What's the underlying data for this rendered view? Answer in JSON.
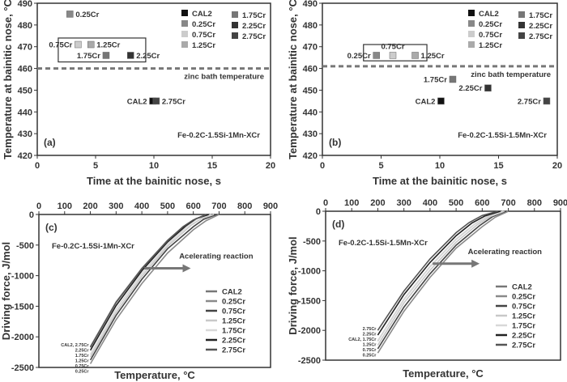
{
  "chart_data": [
    {
      "id": "a",
      "type": "scatter",
      "panel_label": "(a)",
      "xlabel": "Time at the bainitic nose, s",
      "ylabel": "Temperature at bainitic nose, °C",
      "xlim": [
        0,
        20
      ],
      "ylim": [
        420,
        490
      ],
      "xticks": [
        "0",
        "5",
        "10",
        "15",
        "20"
      ],
      "yticks": [
        "420",
        "430",
        "440",
        "450",
        "460",
        "470",
        "480",
        "490"
      ],
      "composition": "Fe-0.2C-1.5Si-1Mn-XCr",
      "reference_line": {
        "y": 460,
        "label": "zinc bath temperature",
        "style": "dashed"
      },
      "legend": {
        "placement": "top-right",
        "entries": [
          "CAL2",
          "0.25Cr",
          "0.75Cr",
          "1.25Cr",
          "1.75Cr",
          "2.25Cr",
          "2.75Cr"
        ]
      },
      "points": [
        {
          "name": "CAL2",
          "x": 9.9,
          "y": 445,
          "color": "#111111",
          "label": "CAL2",
          "label_side": "left"
        },
        {
          "name": "0.25Cr",
          "x": 2.8,
          "y": 485,
          "color": "#888888",
          "label": "0.25Cr",
          "label_side": "right"
        },
        {
          "name": "0.75Cr",
          "x": 3.5,
          "y": 471,
          "color": "#cccccc",
          "label": "0.75Cr",
          "label_side": "left"
        },
        {
          "name": "1.25Cr",
          "x": 4.6,
          "y": 471,
          "color": "#aaaaaa",
          "label": "1.25Cr",
          "label_side": "right"
        },
        {
          "name": "1.75Cr",
          "x": 5.9,
          "y": 466,
          "color": "#777777",
          "label": "1.75Cr",
          "label_side": "left"
        },
        {
          "name": "2.25Cr",
          "x": 8.0,
          "y": 466,
          "color": "#333333",
          "label": "2.25Cr",
          "label_side": "right"
        },
        {
          "name": "2.75Cr",
          "x": 10.2,
          "y": 445,
          "color": "#444444",
          "label": "2.75Cr",
          "label_side": "right"
        }
      ],
      "boxed_group": [
        "0.75Cr",
        "1.25Cr",
        "1.75Cr",
        "2.25Cr"
      ]
    },
    {
      "id": "b",
      "type": "scatter",
      "panel_label": "(b)",
      "xlabel": "Time at the bainitic nose, s",
      "ylabel": "Temperature at bainitic nose, °C",
      "xlim": [
        0,
        20
      ],
      "ylim": [
        420,
        490
      ],
      "xticks": [
        "0",
        "5",
        "10",
        "15",
        "20"
      ],
      "yticks": [
        "420",
        "430",
        "440",
        "450",
        "460",
        "470",
        "480",
        "490"
      ],
      "composition": "Fe-0.2C-1.5Si-1.5Mn-XCr",
      "reference_line": {
        "y": 461,
        "label": "zinc bath temperature",
        "style": "dashed"
      },
      "legend": {
        "placement": "top-right",
        "entries": [
          "CAL2",
          "0.25Cr",
          "0.75Cr",
          "1.25Cr",
          "1.75Cr",
          "2.25Cr",
          "2.75Cr"
        ]
      },
      "points": [
        {
          "name": "CAL2",
          "x": 10.1,
          "y": 445,
          "color": "#111111",
          "label": "CAL2",
          "label_side": "left"
        },
        {
          "name": "0.25Cr",
          "x": 4.6,
          "y": 466,
          "color": "#888888",
          "label": "0.25Cr",
          "label_side": "left"
        },
        {
          "name": "0.75Cr",
          "x": 6.0,
          "y": 466,
          "color": "#cccccc",
          "label": "0.75Cr",
          "label_side": "top"
        },
        {
          "name": "1.25Cr",
          "x": 7.9,
          "y": 466,
          "color": "#aaaaaa",
          "label": "1.25Cr",
          "label_side": "right"
        },
        {
          "name": "1.75Cr",
          "x": 11.1,
          "y": 455,
          "color": "#777777",
          "label": "1.75Cr",
          "label_side": "left"
        },
        {
          "name": "2.25Cr",
          "x": 14.1,
          "y": 451,
          "color": "#333333",
          "label": "2.25Cr",
          "label_side": "left"
        },
        {
          "name": "2.75Cr",
          "x": 19.1,
          "y": 445,
          "color": "#444444",
          "label": "2.75Cr",
          "label_side": "left"
        }
      ],
      "boxed_group": [
        "0.25Cr",
        "0.75Cr",
        "1.25Cr"
      ]
    },
    {
      "id": "c",
      "type": "line",
      "panel_label": "(c)",
      "xlabel": "Temperature, °C",
      "ylabel": "Driving force, J/mol",
      "xlim": [
        0,
        900
      ],
      "ylim": [
        -2500,
        0
      ],
      "xticks": [
        "0",
        "100",
        "200",
        "300",
        "400",
        "500",
        "600",
        "700",
        "800",
        "900"
      ],
      "yticks": [
        "0",
        "-500",
        "-1000",
        "-1500",
        "-2000",
        "-2500"
      ],
      "x_axis_position": "top",
      "composition": "Fe-0.2C-1.5Si-1Mn-XCr",
      "annotation": "Acelerating reaction",
      "legend": {
        "placement": "right"
      },
      "end_labels": [
        "CAL2, 2.75Cr",
        "2.25Cr",
        "1.75Cr",
        "1.25Cr",
        "0.75Cr",
        "0.25Cr"
      ],
      "series": [
        {
          "name": "CAL2",
          "color": "#777777",
          "x": [
            200,
            300,
            400,
            500,
            560,
            600,
            650
          ],
          "y": [
            -2160,
            -1430,
            -880,
            -420,
            -200,
            -90,
            0
          ]
        },
        {
          "name": "0.25Cr",
          "color": "#8a8a8a",
          "x": [
            200,
            300,
            400,
            500,
            600,
            650,
            700
          ],
          "y": [
            -2440,
            -1720,
            -1130,
            -630,
            -250,
            -100,
            0
          ]
        },
        {
          "name": "0.75Cr",
          "color": "#444444",
          "x": [
            200,
            300,
            400,
            500,
            600,
            640,
            690
          ],
          "y": [
            -2380,
            -1650,
            -1060,
            -560,
            -200,
            -80,
            0
          ]
        },
        {
          "name": "1.25Cr",
          "color": "#c8c8c8",
          "x": [
            200,
            300,
            400,
            500,
            590,
            630,
            680
          ],
          "y": [
            -2330,
            -1600,
            -1010,
            -520,
            -180,
            -70,
            0
          ]
        },
        {
          "name": "1.75Cr",
          "color": "#d8d8d8",
          "x": [
            200,
            300,
            400,
            500,
            580,
            620,
            670
          ],
          "y": [
            -2290,
            -1550,
            -970,
            -490,
            -180,
            -60,
            0
          ]
        },
        {
          "name": "2.25Cr",
          "color": "#222222",
          "x": [
            200,
            300,
            400,
            500,
            570,
            610,
            660
          ],
          "y": [
            -2220,
            -1490,
            -920,
            -450,
            -190,
            -70,
            0
          ]
        },
        {
          "name": "2.75Cr",
          "color": "#555555",
          "x": [
            200,
            300,
            400,
            500,
            560,
            600,
            650
          ],
          "y": [
            -2170,
            -1440,
            -890,
            -430,
            -200,
            -90,
            0
          ]
        }
      ]
    },
    {
      "id": "d",
      "type": "line",
      "panel_label": "(d)",
      "xlabel": "Temperature, °C",
      "ylabel": "Driving force, J/mol",
      "xlim": [
        0,
        900
      ],
      "ylim": [
        -2500,
        0
      ],
      "xticks": [
        "0",
        "100",
        "200",
        "300",
        "400",
        "500",
        "600",
        "700",
        "800",
        "900"
      ],
      "yticks": [
        "0",
        "-500",
        "-1000",
        "-1500",
        "-2000",
        "-2500"
      ],
      "x_axis_position": "top",
      "composition": "Fe-0.2C-1.5Si-1.5Mn-XCr",
      "annotation": "Acelerating reaction",
      "legend": {
        "placement": "right"
      },
      "end_labels": [
        "2.75Cr",
        "2.25Cr",
        "CAL2, 1.75Cr",
        "1.25Cr",
        "0.75Cr",
        "0.25Cr"
      ],
      "series": [
        {
          "name": "CAL2",
          "color": "#777777",
          "x": [
            200,
            300,
            400,
            500,
            570,
            620,
            680
          ],
          "y": [
            -2180,
            -1480,
            -930,
            -470,
            -220,
            -90,
            0
          ]
        },
        {
          "name": "0.25Cr",
          "color": "#8a8a8a",
          "x": [
            200,
            300,
            400,
            500,
            600,
            650,
            700
          ],
          "y": [
            -2380,
            -1680,
            -1110,
            -620,
            -260,
            -100,
            0
          ]
        },
        {
          "name": "0.75Cr",
          "color": "#444444",
          "x": [
            200,
            300,
            400,
            500,
            590,
            640,
            690
          ],
          "y": [
            -2310,
            -1610,
            -1050,
            -570,
            -240,
            -90,
            0
          ]
        },
        {
          "name": "1.25Cr",
          "color": "#c8c8c8",
          "x": [
            200,
            300,
            400,
            500,
            580,
            630,
            685
          ],
          "y": [
            -2250,
            -1540,
            -990,
            -520,
            -230,
            -90,
            0
          ]
        },
        {
          "name": "1.75Cr",
          "color": "#d8d8d8",
          "x": [
            200,
            300,
            400,
            500,
            570,
            620,
            680
          ],
          "y": [
            -2180,
            -1480,
            -930,
            -470,
            -220,
            -90,
            0
          ]
        },
        {
          "name": "2.25Cr",
          "color": "#222222",
          "x": [
            200,
            300,
            400,
            500,
            560,
            610,
            670
          ],
          "y": [
            -2080,
            -1400,
            -860,
            -410,
            -200,
            -80,
            0
          ]
        },
        {
          "name": "2.75Cr",
          "color": "#555555",
          "x": [
            200,
            300,
            400,
            500,
            550,
            600,
            660
          ],
          "y": [
            -2000,
            -1340,
            -800,
            -360,
            -190,
            -70,
            0
          ]
        }
      ]
    }
  ]
}
